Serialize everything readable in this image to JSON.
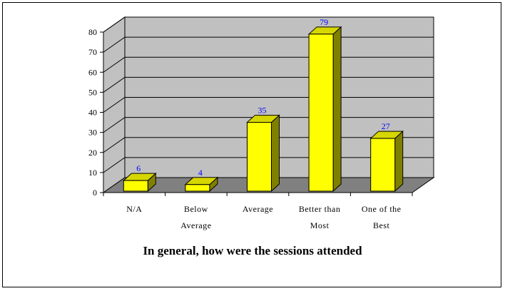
{
  "chart_data": {
    "type": "bar",
    "title": "In general, how were the sessions attended",
    "categories": [
      [
        "N/A"
      ],
      [
        "Below",
        "Average"
      ],
      [
        "Average"
      ],
      [
        "Better than",
        "Most"
      ],
      [
        "One of the",
        "Best"
      ]
    ],
    "values": [
      6,
      4,
      35,
      79,
      27
    ],
    "ylim": [
      0,
      80
    ],
    "yticks": [
      0,
      10,
      20,
      30,
      40,
      50,
      60,
      70,
      80
    ],
    "grid": true,
    "colors": {
      "bar_front": "#ffff00",
      "bar_side": "#808000",
      "bar_top": "#d6d600",
      "wall": "#c0c0c0",
      "floor": "#808080",
      "data_label": "#0000ff"
    }
  }
}
